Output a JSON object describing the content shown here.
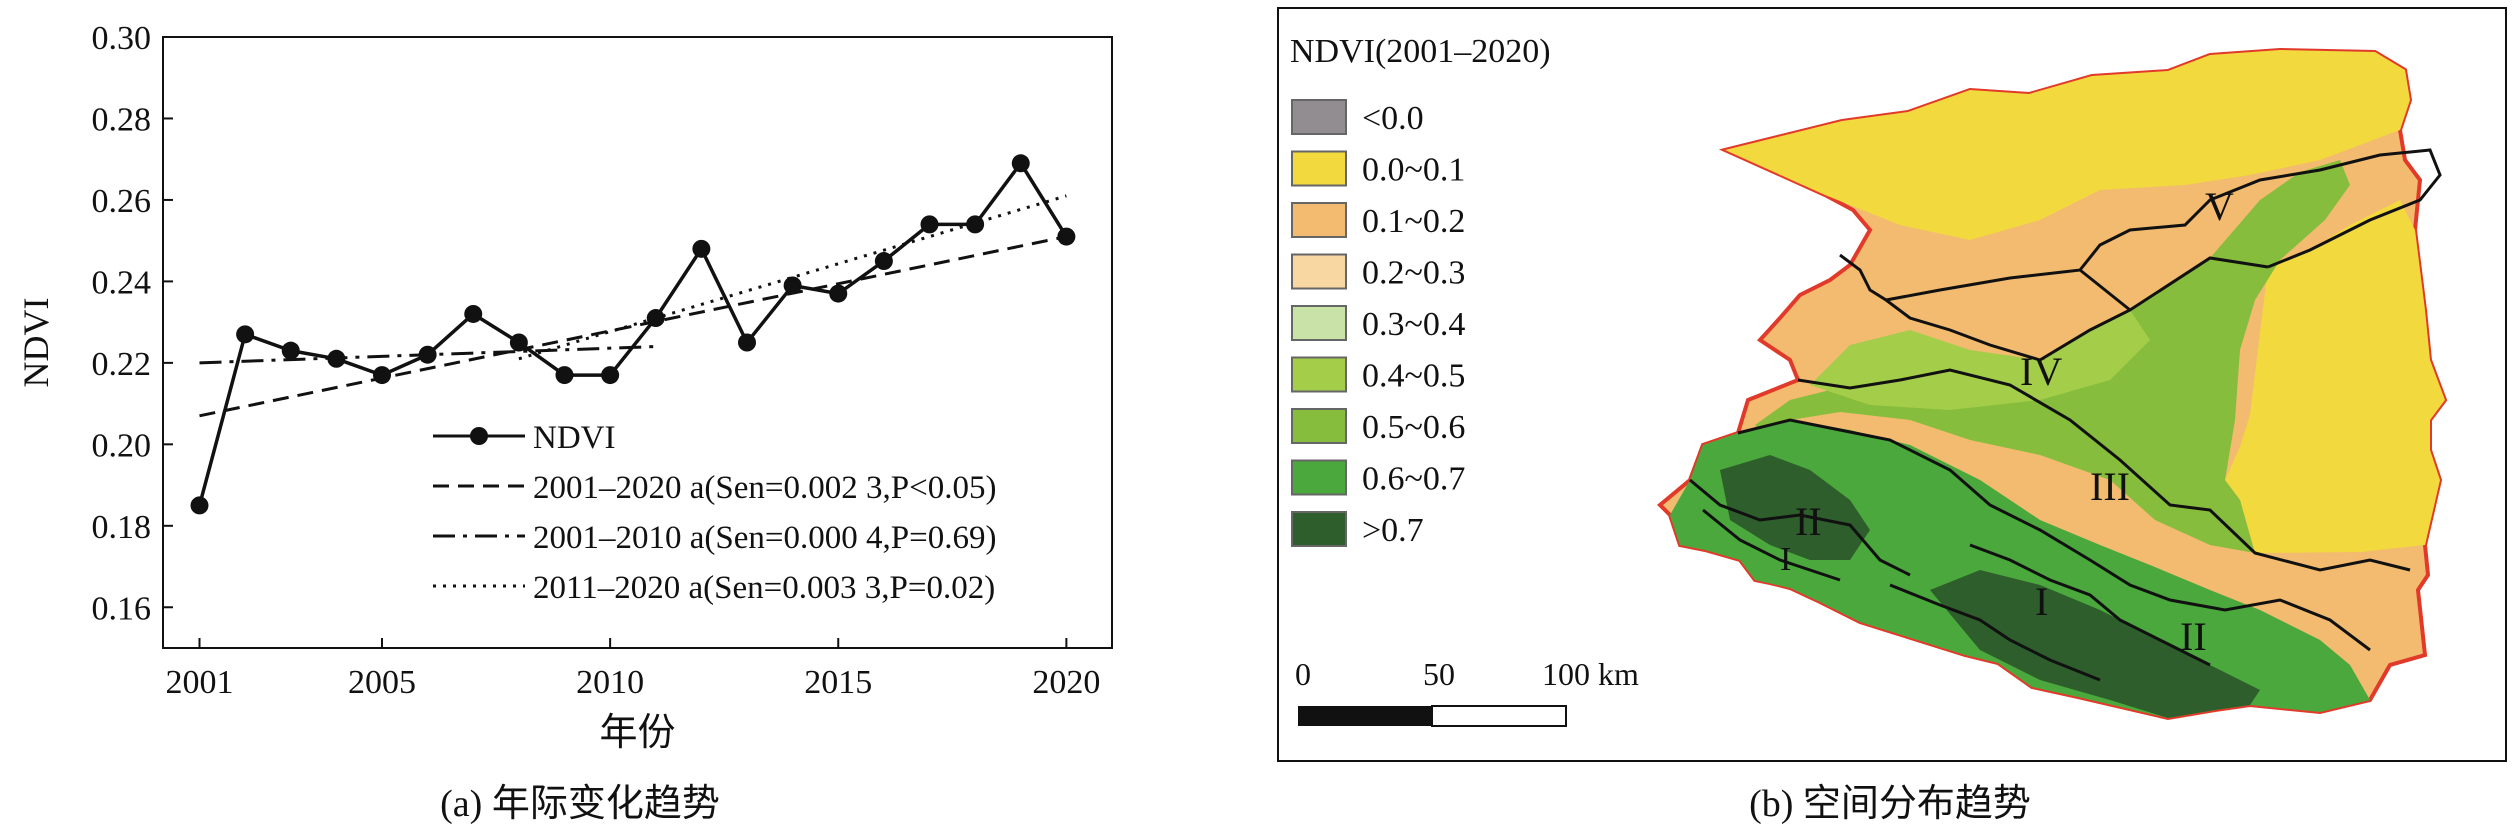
{
  "chart_data": {
    "type": "line",
    "xlabel": "年份",
    "ylabel": "NDVI",
    "xlim": [
      2000.2,
      2021.0
    ],
    "ylim": [
      0.15,
      0.3
    ],
    "xticks": [
      2001,
      2005,
      2010,
      2015,
      2020
    ],
    "yticks": [
      0.16,
      0.18,
      0.2,
      0.22,
      0.24,
      0.26,
      0.28,
      0.3
    ],
    "ytick_labels": [
      "0.16",
      "0.18",
      "0.20",
      "0.22",
      "0.24",
      "0.26",
      "0.28",
      "0.30"
    ],
    "legend_position": "bottom-right",
    "series": [
      {
        "name": "NDVI",
        "style": "solid-markers",
        "x": [
          2001,
          2002,
          2003,
          2004,
          2005,
          2006,
          2007,
          2008,
          2009,
          2010,
          2011,
          2012,
          2013,
          2014,
          2015,
          2016,
          2017,
          2018,
          2019,
          2020
        ],
        "y": [
          0.185,
          0.227,
          0.223,
          0.221,
          0.217,
          0.222,
          0.232,
          0.225,
          0.217,
          0.217,
          0.231,
          0.248,
          0.225,
          0.239,
          0.237,
          0.245,
          0.254,
          0.254,
          0.269,
          0.251
        ]
      },
      {
        "name": "2001–2020 a(Sen=0.002 3,P<0.05)",
        "style": "dashed",
        "x": [
          2001,
          2020
        ],
        "y": [
          0.207,
          0.251
        ]
      },
      {
        "name": "2001–2010 a(Sen=0.000 4,P=0.69)",
        "style": "dashdot",
        "x": [
          2001,
          2011
        ],
        "y": [
          0.22,
          0.224
        ]
      },
      {
        "name": "2011–2020 a(Sen=0.003 3,P=0.02)",
        "style": "dotted",
        "x": [
          2008,
          2020
        ],
        "y": [
          0.221,
          0.261
        ]
      }
    ],
    "caption": "(a) 年际变化趋势"
  },
  "map": {
    "legend_title": "NDVI(2001–2020)",
    "legend": [
      {
        "label": "<0.0",
        "color": "#928d90"
      },
      {
        "label": "0.0~0.1",
        "color": "#f2d93e"
      },
      {
        "label": "0.1~0.2",
        "color": "#f3bb6f"
      },
      {
        "label": "0.2~0.3",
        "color": "#f8d7a2"
      },
      {
        "label": "0.3~0.4",
        "color": "#c9e2a8"
      },
      {
        "label": "0.4~0.5",
        "color": "#a4cd4a"
      },
      {
        "label": "0.5~0.6",
        "color": "#86bd3c"
      },
      {
        "label": "0.6~0.7",
        "color": "#4aa83c"
      },
      {
        "label": ">0.7",
        "color": "#2d5e2c"
      }
    ],
    "zones": [
      "V",
      "IV",
      "III",
      "II",
      "I",
      "I",
      "II"
    ],
    "scale": {
      "ticks": [
        "0",
        "50",
        "100 km"
      ]
    },
    "caption": "(b) 空间分布趋势",
    "border_color": "#e23a2a"
  }
}
